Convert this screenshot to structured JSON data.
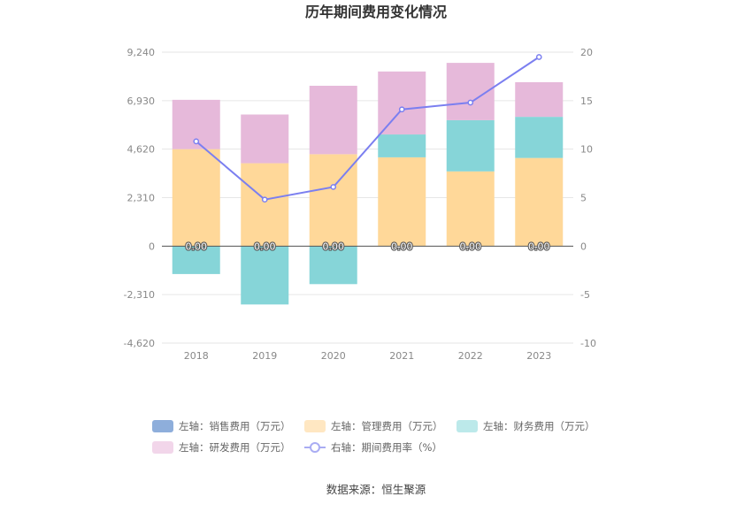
{
  "chart_data": {
    "type": "bar",
    "title": "历年期间费用变化情况",
    "categories": [
      "2018",
      "2019",
      "2020",
      "2021",
      "2022",
      "2023"
    ],
    "left_axis": {
      "ticks": [
        "9,240",
        "6,930",
        "4,620",
        "2,310",
        "0",
        "-2,310",
        "-4,620"
      ],
      "ylim": [
        -4620,
        9240
      ]
    },
    "right_axis": {
      "ticks": [
        "20",
        "15",
        "10",
        "5",
        "0",
        "-5",
        "-10"
      ],
      "ylim": [
        -10,
        20
      ]
    },
    "series": [
      {
        "name": "左轴：销售费用（万元）",
        "axis": "left",
        "kind": "bar",
        "color": "#8EAEDB",
        "values": [
          0,
          0,
          0,
          0,
          0,
          0
        ]
      },
      {
        "name": "左轴：管理费用（万元）",
        "axis": "left",
        "kind": "bar",
        "color": "#FFD899",
        "values": [
          4620,
          3950,
          4380,
          4230,
          3560,
          4200
        ]
      },
      {
        "name": "左轴：财务费用（万元）",
        "axis": "left",
        "kind": "bar",
        "color": "#86D5D8",
        "values": [
          -1330,
          -2780,
          -1810,
          1090,
          2440,
          1960
        ]
      },
      {
        "name": "左轴：研发费用（万元）",
        "axis": "left",
        "kind": "bar",
        "color": "#E6B9DA",
        "values": [
          2350,
          2320,
          3260,
          3000,
          2730,
          1650
        ]
      },
      {
        "name": "右轴：期间费用率（%）",
        "axis": "right",
        "kind": "line",
        "color": "#7B7FF0",
        "values": [
          10.8,
          4.8,
          6.1,
          14.1,
          14.8,
          19.5
        ]
      }
    ],
    "data_labels": [
      "0.00",
      "0.00",
      "0.00",
      "0.00",
      "0.00",
      "0.00"
    ],
    "grid": true,
    "legend_position": "bottom"
  },
  "source": "数据来源：恒生聚源"
}
